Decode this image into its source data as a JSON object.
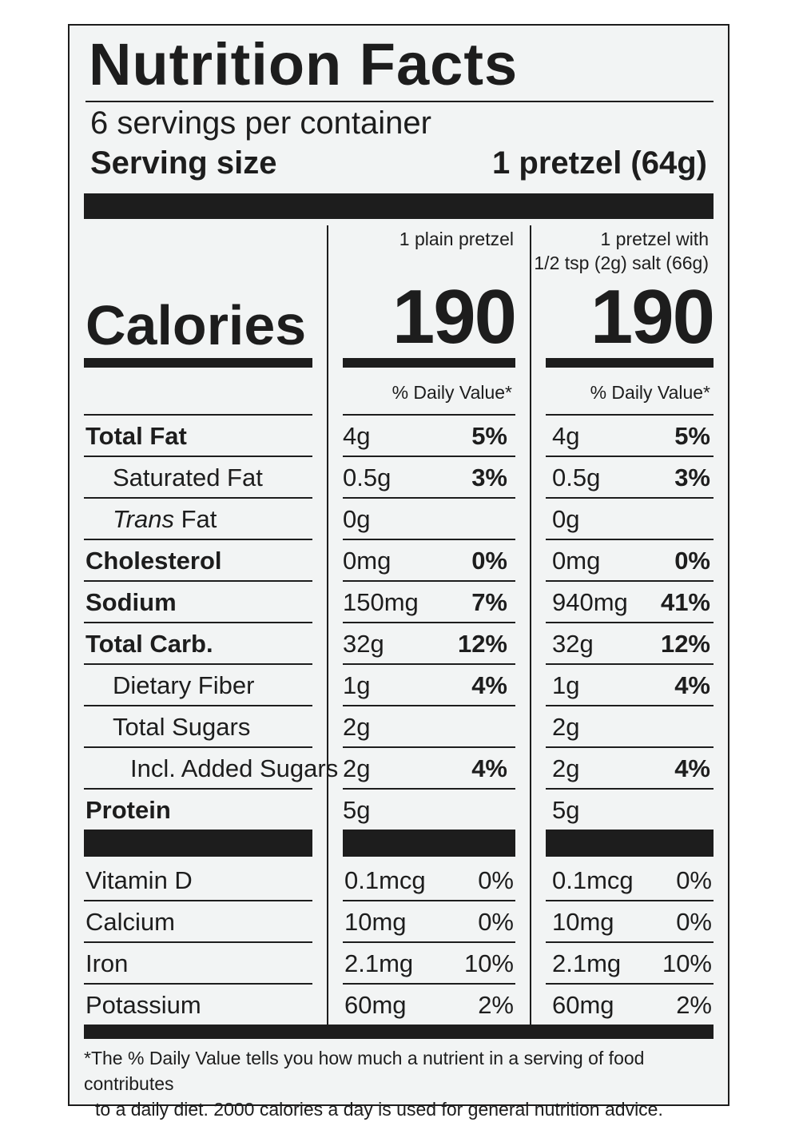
{
  "title": "Nutrition Facts",
  "servings_per_container": "6 servings per container",
  "serving_size_label": "Serving size",
  "serving_size_value": "1 pretzel (64g)",
  "columns": [
    {
      "header_line1": "1 plain pretzel",
      "header_line2": "",
      "calories": "190",
      "dv_label": "% Daily Value*"
    },
    {
      "header_line1": "1 pretzel with",
      "header_line2": "1/2 tsp (2g) salt (66g)",
      "calories": "190",
      "dv_label": "% Daily Value*"
    }
  ],
  "calories_label": "Calories",
  "nutrients": [
    {
      "label": "Total Fat",
      "c1_amount": "4g",
      "c1_pct": "5%",
      "c2_amount": "4g",
      "c2_pct": "5%"
    },
    {
      "label": "Saturated Fat",
      "c1_amount": "0.5g",
      "c1_pct": "3%",
      "c2_amount": "0.5g",
      "c2_pct": "3%"
    },
    {
      "label_italic": "Trans",
      "label_rest": " Fat",
      "c1_amount": "0g",
      "c1_pct": "",
      "c2_amount": "0g",
      "c2_pct": ""
    },
    {
      "label": "Cholesterol",
      "c1_amount": "0mg",
      "c1_pct": "0%",
      "c2_amount": "0mg",
      "c2_pct": "0%"
    },
    {
      "label": "Sodium",
      "c1_amount": "150mg",
      "c1_pct": "7%",
      "c2_amount": "940mg",
      "c2_pct": "41%"
    },
    {
      "label": "Total Carb.",
      "c1_amount": "32g",
      "c1_pct": "12%",
      "c2_amount": "32g",
      "c2_pct": "12%"
    },
    {
      "label": "Dietary Fiber",
      "c1_amount": "1g",
      "c1_pct": "4%",
      "c2_amount": "1g",
      "c2_pct": "4%"
    },
    {
      "label": "Total Sugars",
      "c1_amount": "2g",
      "c1_pct": "",
      "c2_amount": "2g",
      "c2_pct": ""
    },
    {
      "label": "Incl. Added Sugars",
      "c1_amount": "2g",
      "c1_pct": "4%",
      "c2_amount": "2g",
      "c2_pct": "4%"
    },
    {
      "label": "Protein",
      "c1_amount": "5g",
      "c1_pct": "",
      "c2_amount": "5g",
      "c2_pct": ""
    }
  ],
  "vitamins": [
    {
      "label": "Vitamin D",
      "c1_amount": "0.1mcg",
      "c1_pct": "0%",
      "c2_amount": "0.1mcg",
      "c2_pct": "0%"
    },
    {
      "label": "Calcium",
      "c1_amount": "10mg",
      "c1_pct": "0%",
      "c2_amount": "10mg",
      "c2_pct": "0%"
    },
    {
      "label": "Iron",
      "c1_amount": "2.1mg",
      "c1_pct": "10%",
      "c2_amount": "2.1mg",
      "c2_pct": "10%"
    },
    {
      "label": "Potassium",
      "c1_amount": "60mg",
      "c1_pct": "2%",
      "c2_amount": "60mg",
      "c2_pct": "2%"
    }
  ],
  "footnote_line1": "*The % Daily Value tells you how much a nutrient in a serving of food contributes",
  "footnote_line2": "to a daily diet. 2000 calories a day is used for general nutrition advice."
}
